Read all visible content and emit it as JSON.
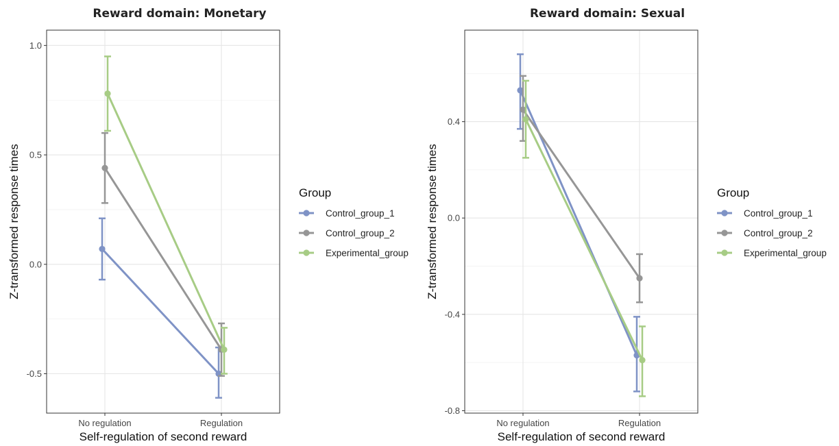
{
  "chart_data": [
    {
      "type": "line",
      "title": "Reward domain: Monetary",
      "xlabel": "Self-regulation of second reward",
      "ylabel": "Z-transformed response times",
      "categories": [
        "No regulation",
        "Regulation"
      ],
      "ylim": [
        -0.68,
        1.07
      ],
      "yticks": [
        -0.5,
        0.0,
        0.5,
        1.0
      ],
      "ytick_labels": [
        "-0.5",
        "0.0",
        "0.5",
        "1.0"
      ],
      "grid": true,
      "legend": {
        "title": "Group",
        "position": "right"
      },
      "series": [
        {
          "name": "Control_group_1",
          "color": "#7f93c6",
          "values": [
            0.07,
            -0.5
          ],
          "err_low": [
            -0.07,
            -0.61
          ],
          "err_high": [
            0.21,
            -0.38
          ]
        },
        {
          "name": "Control_group_2",
          "color": "#969696",
          "values": [
            0.44,
            -0.39
          ],
          "err_low": [
            0.28,
            -0.51
          ],
          "err_high": [
            0.6,
            -0.27
          ]
        },
        {
          "name": "Experimental_group",
          "color": "#a7cc85",
          "values": [
            0.78,
            -0.39
          ],
          "err_low": [
            0.61,
            -0.5
          ],
          "err_high": [
            0.95,
            -0.29
          ]
        }
      ]
    },
    {
      "type": "line",
      "title": "Reward domain: Sexual",
      "xlabel": "Self-regulation of second reward",
      "ylabel": "Z-transformed response times",
      "categories": [
        "No regulation",
        "Regulation"
      ],
      "ylim": [
        -0.81,
        0.78
      ],
      "yticks": [
        -0.8,
        -0.4,
        0.0,
        0.4
      ],
      "ytick_labels": [
        "-0.8",
        "-0.4",
        "0.0",
        "0.4"
      ],
      "grid": true,
      "legend": {
        "title": "Group",
        "position": "right"
      },
      "series": [
        {
          "name": "Control_group_1",
          "color": "#7f93c6",
          "values": [
            0.53,
            -0.57
          ],
          "err_low": [
            0.37,
            -0.72
          ],
          "err_high": [
            0.68,
            -0.41
          ]
        },
        {
          "name": "Control_group_2",
          "color": "#969696",
          "values": [
            0.45,
            -0.25
          ],
          "err_low": [
            0.32,
            -0.35
          ],
          "err_high": [
            0.59,
            -0.15
          ]
        },
        {
          "name": "Experimental_group",
          "color": "#a7cc85",
          "values": [
            0.41,
            -0.59
          ],
          "err_low": [
            0.25,
            -0.74
          ],
          "err_high": [
            0.57,
            -0.45
          ]
        }
      ]
    }
  ]
}
